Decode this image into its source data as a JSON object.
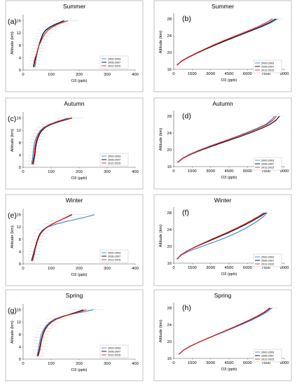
{
  "colors": {
    "series_2000_2003": "#3d7fd9",
    "series_2006_2007": "#000000",
    "series_2012_2015": "#e32222",
    "error_bars": "#a8a8a8",
    "frame": "#9a9a9a"
  },
  "chart_data": [
    {
      "id": "a",
      "letter": "(a)",
      "title": "Summer",
      "type": "line",
      "xlabel": "O3 (ppb)",
      "ylabel": "Altitude (km)",
      "xlim": [
        0,
        400
      ],
      "ylim": [
        0,
        17.5
      ],
      "xticks": [
        "0",
        "100",
        "200",
        "300",
        "400"
      ],
      "yticks": [
        "0",
        "4",
        "8",
        "12",
        "16"
      ],
      "legend": "bottom-right",
      "series": [
        {
          "name": "2000-2003",
          "y": [
            1,
            2,
            3,
            4,
            5,
            6,
            7,
            8,
            9,
            10,
            11,
            12,
            13,
            14,
            15,
            16
          ],
          "x": [
            42,
            44,
            45,
            47,
            49,
            51,
            53,
            56,
            59,
            63,
            67,
            72,
            80,
            95,
            118,
            150
          ]
        },
        {
          "name": "2006-2007",
          "y": [
            1,
            2,
            3,
            4,
            5,
            6,
            7,
            8,
            9,
            10,
            11,
            12,
            13,
            14,
            15,
            16
          ],
          "x": [
            38,
            40,
            42,
            45,
            48,
            51,
            54,
            57,
            60,
            64,
            68,
            73,
            82,
            98,
            120,
            145
          ]
        },
        {
          "name": "2012-2015",
          "y": [
            1,
            2,
            3,
            4,
            5,
            6,
            7,
            8,
            9,
            10,
            11,
            12,
            13,
            14,
            15,
            16
          ],
          "x": [
            36,
            38,
            40,
            43,
            47,
            50,
            53,
            57,
            62,
            67,
            73,
            80,
            90,
            106,
            128,
            160
          ]
        }
      ]
    },
    {
      "id": "b",
      "letter": "(b)",
      "title": "Summer",
      "type": "line",
      "xlabel": "O3 (ppb)",
      "ylabel": "Altitude (km)",
      "xlim": [
        0,
        9000
      ],
      "ylim": [
        16,
        29
      ],
      "xticks": [
        "0",
        "1500",
        "3000",
        "4500",
        "6000",
        "7500",
        "9000"
      ],
      "yticks": [
        "16",
        "20",
        "24",
        "28"
      ],
      "legend": "bottom-right",
      "series": [
        {
          "name": "2000-2003",
          "y": [
            17,
            18,
            19,
            20,
            21,
            22,
            23,
            24,
            25,
            26,
            27,
            28
          ],
          "x": [
            250,
            650,
            1250,
            1950,
            2700,
            3500,
            4350,
            5250,
            6150,
            7050,
            7850,
            8450
          ]
        },
        {
          "name": "2006-2007",
          "y": [
            17,
            18,
            19,
            20,
            21,
            22,
            23,
            24,
            25,
            26,
            27,
            28
          ],
          "x": [
            260,
            680,
            1300,
            2000,
            2750,
            3550,
            4400,
            5250,
            6100,
            6950,
            7700,
            8300
          ]
        },
        {
          "name": "2012-2015",
          "y": [
            17,
            18,
            19,
            20,
            21,
            22,
            23,
            24,
            25,
            26,
            27,
            28
          ],
          "x": [
            240,
            640,
            1250,
            1920,
            2650,
            3400,
            4200,
            5050,
            5900,
            6750,
            7450,
            8050
          ]
        }
      ]
    },
    {
      "id": "c",
      "letter": "(c)",
      "title": "Autumn",
      "type": "line",
      "xlabel": "O3 (ppb)",
      "ylabel": "Altitude (km)",
      "xlim": [
        0,
        400
      ],
      "ylim": [
        0,
        17.5
      ],
      "xticks": [
        "0",
        "100",
        "200",
        "300",
        "400"
      ],
      "yticks": [
        "0",
        "4",
        "8",
        "12",
        "16"
      ],
      "legend": "bottom-right",
      "series": [
        {
          "name": "2000-2003",
          "y": [
            1,
            2,
            3,
            4,
            5,
            6,
            7,
            8,
            9,
            10,
            11,
            12,
            13,
            14,
            15,
            16
          ],
          "x": [
            30,
            32,
            34,
            35,
            36,
            37,
            39,
            41,
            44,
            48,
            54,
            62,
            74,
            95,
            125,
            160
          ]
        },
        {
          "name": "2006-2007",
          "y": [
            1,
            2,
            3,
            4,
            5,
            6,
            7,
            8,
            9,
            10,
            11,
            12,
            13,
            14,
            15,
            16
          ],
          "x": [
            36,
            38,
            40,
            42,
            43,
            44,
            46,
            48,
            51,
            55,
            60,
            68,
            80,
            102,
            135,
            175
          ]
        },
        {
          "name": "2012-2015",
          "y": [
            1,
            2,
            3,
            4,
            5,
            6,
            7,
            8,
            9,
            10,
            11,
            12,
            13,
            14,
            15,
            16
          ],
          "x": [
            33,
            35,
            37,
            39,
            40,
            41,
            43,
            45,
            48,
            52,
            57,
            65,
            77,
            98,
            128,
            170
          ]
        }
      ]
    },
    {
      "id": "d",
      "letter": "(d)",
      "title": "Autumn",
      "type": "line",
      "xlabel": "O3 (ppb)",
      "ylabel": "Altitude (km)",
      "xlim": [
        0,
        9000
      ],
      "ylim": [
        16,
        29
      ],
      "xticks": [
        "0",
        "1500",
        "3000",
        "4500",
        "6000",
        "7500",
        "9000"
      ],
      "yticks": [
        "16",
        "20",
        "24",
        "28"
      ],
      "legend": "bottom-right",
      "series": [
        {
          "name": "2000-2003",
          "y": [
            17,
            18,
            19,
            20,
            21,
            22,
            23,
            24,
            25,
            26,
            27,
            28
          ],
          "x": [
            300,
            700,
            1350,
            2150,
            3050,
            4000,
            4950,
            5850,
            6700,
            7450,
            7900,
            8200
          ]
        },
        {
          "name": "2006-2007",
          "y": [
            17,
            18,
            19,
            20,
            21,
            22,
            23,
            24,
            25,
            26,
            27,
            28
          ],
          "x": [
            320,
            760,
            1450,
            2300,
            3250,
            4250,
            5250,
            6200,
            7050,
            7800,
            8300,
            8600
          ]
        },
        {
          "name": "2012-2015",
          "y": [
            17,
            18,
            19,
            20,
            21,
            22,
            23,
            24,
            25,
            26,
            27,
            28
          ],
          "x": [
            310,
            740,
            1400,
            2200,
            3100,
            4050,
            5000,
            5950,
            6800,
            7550,
            8050,
            8350
          ]
        }
      ]
    },
    {
      "id": "e",
      "letter": "(e)",
      "title": "Winter",
      "type": "line",
      "xlabel": "O3 (ppb)",
      "ylabel": "Altitude (km)",
      "xlim": [
        0,
        400
      ],
      "ylim": [
        0,
        17.5
      ],
      "xticks": [
        "0",
        "100",
        "200",
        "300",
        "400"
      ],
      "yticks": [
        "0",
        "4",
        "8",
        "12",
        "16"
      ],
      "legend": "bottom-right",
      "series": [
        {
          "name": "2000-2003",
          "y": [
            1,
            2,
            3,
            4,
            5,
            6,
            7,
            8,
            9,
            10,
            11,
            12,
            13,
            14,
            15,
            16
          ],
          "x": [
            34,
            37,
            40,
            42,
            44,
            46,
            49,
            52,
            56,
            61,
            70,
            88,
            120,
            165,
            215,
            255
          ]
        },
        {
          "name": "2006-2007",
          "y": [
            1,
            2,
            3,
            4,
            5,
            6,
            7,
            8,
            9,
            10,
            11,
            12,
            13,
            14,
            15,
            16
          ],
          "x": [
            30,
            33,
            36,
            39,
            42,
            45,
            48,
            52,
            56,
            62,
            72,
            86,
            105,
            128,
            152,
            175
          ]
        },
        {
          "name": "2012-2015",
          "y": [
            1,
            2,
            3,
            4,
            5,
            6,
            7,
            8,
            9,
            10,
            11,
            12,
            13,
            14,
            15,
            16
          ],
          "x": [
            32,
            35,
            38,
            41,
            44,
            47,
            50,
            54,
            58,
            64,
            74,
            88,
            106,
            128,
            150,
            172
          ]
        }
      ]
    },
    {
      "id": "f",
      "letter": "(f)",
      "title": "Winter",
      "type": "line",
      "xlabel": "O3 (ppb)",
      "ylabel": "Altitude (km)",
      "xlim": [
        0,
        9000
      ],
      "ylim": [
        16,
        29
      ],
      "xticks": [
        "0",
        "1500",
        "3000",
        "4500",
        "6000",
        "7500",
        "9000"
      ],
      "yticks": [
        "16",
        "20",
        "24",
        "28"
      ],
      "legend": "bottom-right",
      "series": [
        {
          "name": "2000-2003",
          "y": [
            17,
            18,
            19,
            20,
            21,
            22,
            23,
            24,
            25,
            26,
            27,
            28
          ],
          "x": [
            250,
            650,
            1350,
            2300,
            3250,
            4150,
            4950,
            5650,
            6250,
            6800,
            7250,
            7600
          ]
        },
        {
          "name": "2006-2007",
          "y": [
            17,
            18,
            19,
            20,
            21,
            22,
            23,
            24,
            25,
            26,
            27,
            28
          ],
          "x": [
            280,
            600,
            1150,
            1850,
            2650,
            3450,
            4250,
            5000,
            5700,
            6350,
            6950,
            7500
          ]
        },
        {
          "name": "2012-2015",
          "y": [
            17,
            18,
            19,
            20,
            21,
            22,
            23,
            24,
            25,
            26,
            27,
            28
          ],
          "x": [
            300,
            620,
            1150,
            1800,
            2550,
            3300,
            4100,
            4850,
            5550,
            6200,
            6800,
            7350
          ]
        }
      ]
    },
    {
      "id": "g",
      "letter": "(g)",
      "title": "Spring",
      "type": "line",
      "xlabel": "O3 (ppb)",
      "ylabel": "Altitude (km)",
      "xlim": [
        0,
        400
      ],
      "ylim": [
        0,
        17.5
      ],
      "xticks": [
        "0",
        "100",
        "200",
        "300",
        "400"
      ],
      "yticks": [
        "0",
        "4",
        "8",
        "12",
        "16"
      ],
      "legend": "bottom-right",
      "series": [
        {
          "name": "2000-2003",
          "y": [
            1,
            2,
            3,
            4,
            5,
            6,
            7,
            8,
            9,
            10,
            11,
            12,
            13,
            14,
            15,
            16
          ],
          "x": [
            50,
            52,
            54,
            56,
            58,
            60,
            62,
            65,
            70,
            76,
            84,
            95,
            112,
            145,
            195,
            250
          ]
        },
        {
          "name": "2006-2007",
          "y": [
            1,
            2,
            3,
            4,
            5,
            6,
            7,
            8,
            9,
            10,
            11,
            12,
            13,
            14,
            15,
            16
          ],
          "x": [
            52,
            55,
            58,
            60,
            62,
            64,
            67,
            70,
            74,
            80,
            88,
            100,
            118,
            148,
            182,
            215
          ]
        },
        {
          "name": "2012-2015",
          "y": [
            1,
            2,
            3,
            4,
            5,
            6,
            7,
            8,
            9,
            10,
            11,
            12,
            13,
            14,
            15,
            16
          ],
          "x": [
            54,
            57,
            60,
            62,
            64,
            66,
            69,
            72,
            76,
            82,
            90,
            102,
            120,
            150,
            188,
            225
          ]
        }
      ]
    },
    {
      "id": "h",
      "letter": "(h)",
      "title": "Spring",
      "type": "line",
      "xlabel": "O3 (ppb)",
      "ylabel": "Altitude (km)",
      "xlim": [
        0,
        9000
      ],
      "ylim": [
        16,
        29
      ],
      "xticks": [
        "0",
        "1500",
        "3000",
        "4500",
        "6000",
        "7500",
        "9000"
      ],
      "yticks": [
        "16",
        "20",
        "24",
        "28"
      ],
      "legend": "bottom-right",
      "series": [
        {
          "name": "2000-2003",
          "y": [
            17,
            18,
            19,
            20,
            21,
            22,
            23,
            24,
            25,
            26,
            27,
            28
          ],
          "x": [
            420,
            800,
            1400,
            2150,
            2950,
            3800,
            4650,
            5450,
            6250,
            6950,
            7550,
            8000
          ]
        },
        {
          "name": "2006-2007",
          "y": [
            17,
            18,
            19,
            20,
            21,
            22,
            23,
            24,
            25,
            26,
            27,
            28
          ],
          "x": [
            440,
            820,
            1420,
            2150,
            2950,
            3750,
            4550,
            5350,
            6100,
            6800,
            7400,
            7850
          ]
        },
        {
          "name": "2012-2015",
          "y": [
            17,
            18,
            19,
            20,
            21,
            22,
            23,
            24,
            25,
            26,
            27,
            28
          ],
          "x": [
            430,
            810,
            1400,
            2130,
            2920,
            3720,
            4520,
            5300,
            6050,
            6750,
            7350,
            7800
          ]
        }
      ]
    }
  ]
}
